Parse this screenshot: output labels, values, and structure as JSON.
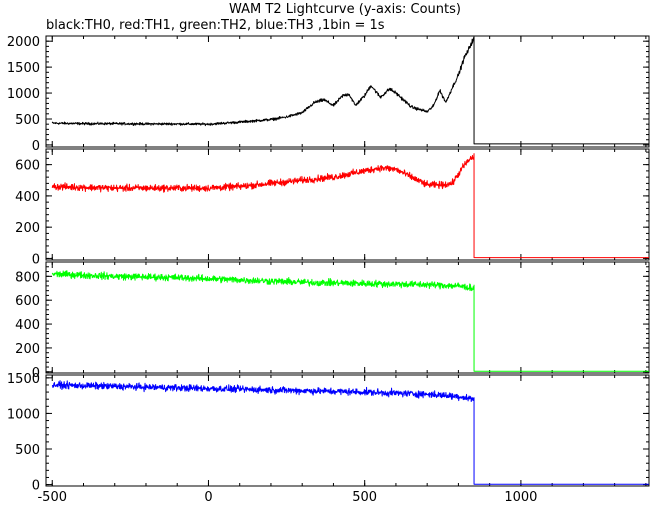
{
  "chart_data": {
    "type": "line",
    "title": "WAM T2 Lightcurve (y-axis: Counts)",
    "subtitle": "black:TH0, red:TH1, green:TH2, blue:TH3 ,1bin = 1s",
    "xlabel": "",
    "ylabel": "",
    "xlim": [
      -520,
      1410
    ],
    "x_ticks": [
      -500,
      0,
      500,
      1000
    ],
    "grid": false,
    "legend": "none",
    "panels": [
      {
        "name": "TH0",
        "color": "#000000",
        "ylim": [
          -40,
          2100
        ],
        "y_ticks": [
          0,
          500,
          1000,
          1500,
          2000
        ],
        "x": [
          -500,
          -400,
          -300,
          -200,
          -100,
          0,
          100,
          200,
          250,
          300,
          340,
          370,
          400,
          430,
          450,
          470,
          500,
          520,
          550,
          580,
          600,
          650,
          700,
          720,
          740,
          760,
          780,
          800,
          820,
          830,
          840,
          850,
          851,
          1410
        ],
        "values": [
          420,
          410,
          410,
          405,
          405,
          400,
          440,
          490,
          540,
          620,
          820,
          870,
          760,
          950,
          980,
          760,
          950,
          1150,
          920,
          1080,
          1000,
          730,
          640,
          750,
          1050,
          820,
          1100,
          1350,
          1700,
          1800,
          1950,
          2050,
          20,
          20
        ]
      },
      {
        "name": "TH1",
        "color": "#ff0000",
        "ylim": [
          -10,
          700
        ],
        "y_ticks": [
          0,
          200,
          400,
          600
        ],
        "x": [
          -500,
          -300,
          -100,
          0,
          100,
          200,
          300,
          400,
          450,
          500,
          550,
          600,
          650,
          700,
          750,
          780,
          800,
          820,
          840,
          850,
          851,
          1410
        ],
        "values": [
          460,
          450,
          450,
          450,
          460,
          480,
          500,
          520,
          540,
          560,
          580,
          570,
          520,
          470,
          470,
          480,
          540,
          600,
          640,
          650,
          5,
          5
        ]
      },
      {
        "name": "TH2",
        "color": "#00ff00",
        "ylim": [
          -10,
          920
        ],
        "y_ticks": [
          0,
          200,
          400,
          600,
          800
        ],
        "x": [
          -500,
          -300,
          -100,
          100,
          300,
          500,
          700,
          800,
          850,
          851,
          1410
        ],
        "values": [
          820,
          800,
          790,
          770,
          750,
          740,
          730,
          720,
          700,
          5,
          5
        ]
      },
      {
        "name": "TH3",
        "color": "#0000ff",
        "ylim": [
          -20,
          1540
        ],
        "y_ticks": [
          0,
          500,
          1000,
          1500
        ],
        "x": [
          -500,
          -300,
          -100,
          100,
          300,
          500,
          700,
          800,
          850,
          851,
          1410
        ],
        "values": [
          1400,
          1380,
          1360,
          1340,
          1320,
          1300,
          1270,
          1240,
          1200,
          5,
          5
        ]
      }
    ]
  }
}
